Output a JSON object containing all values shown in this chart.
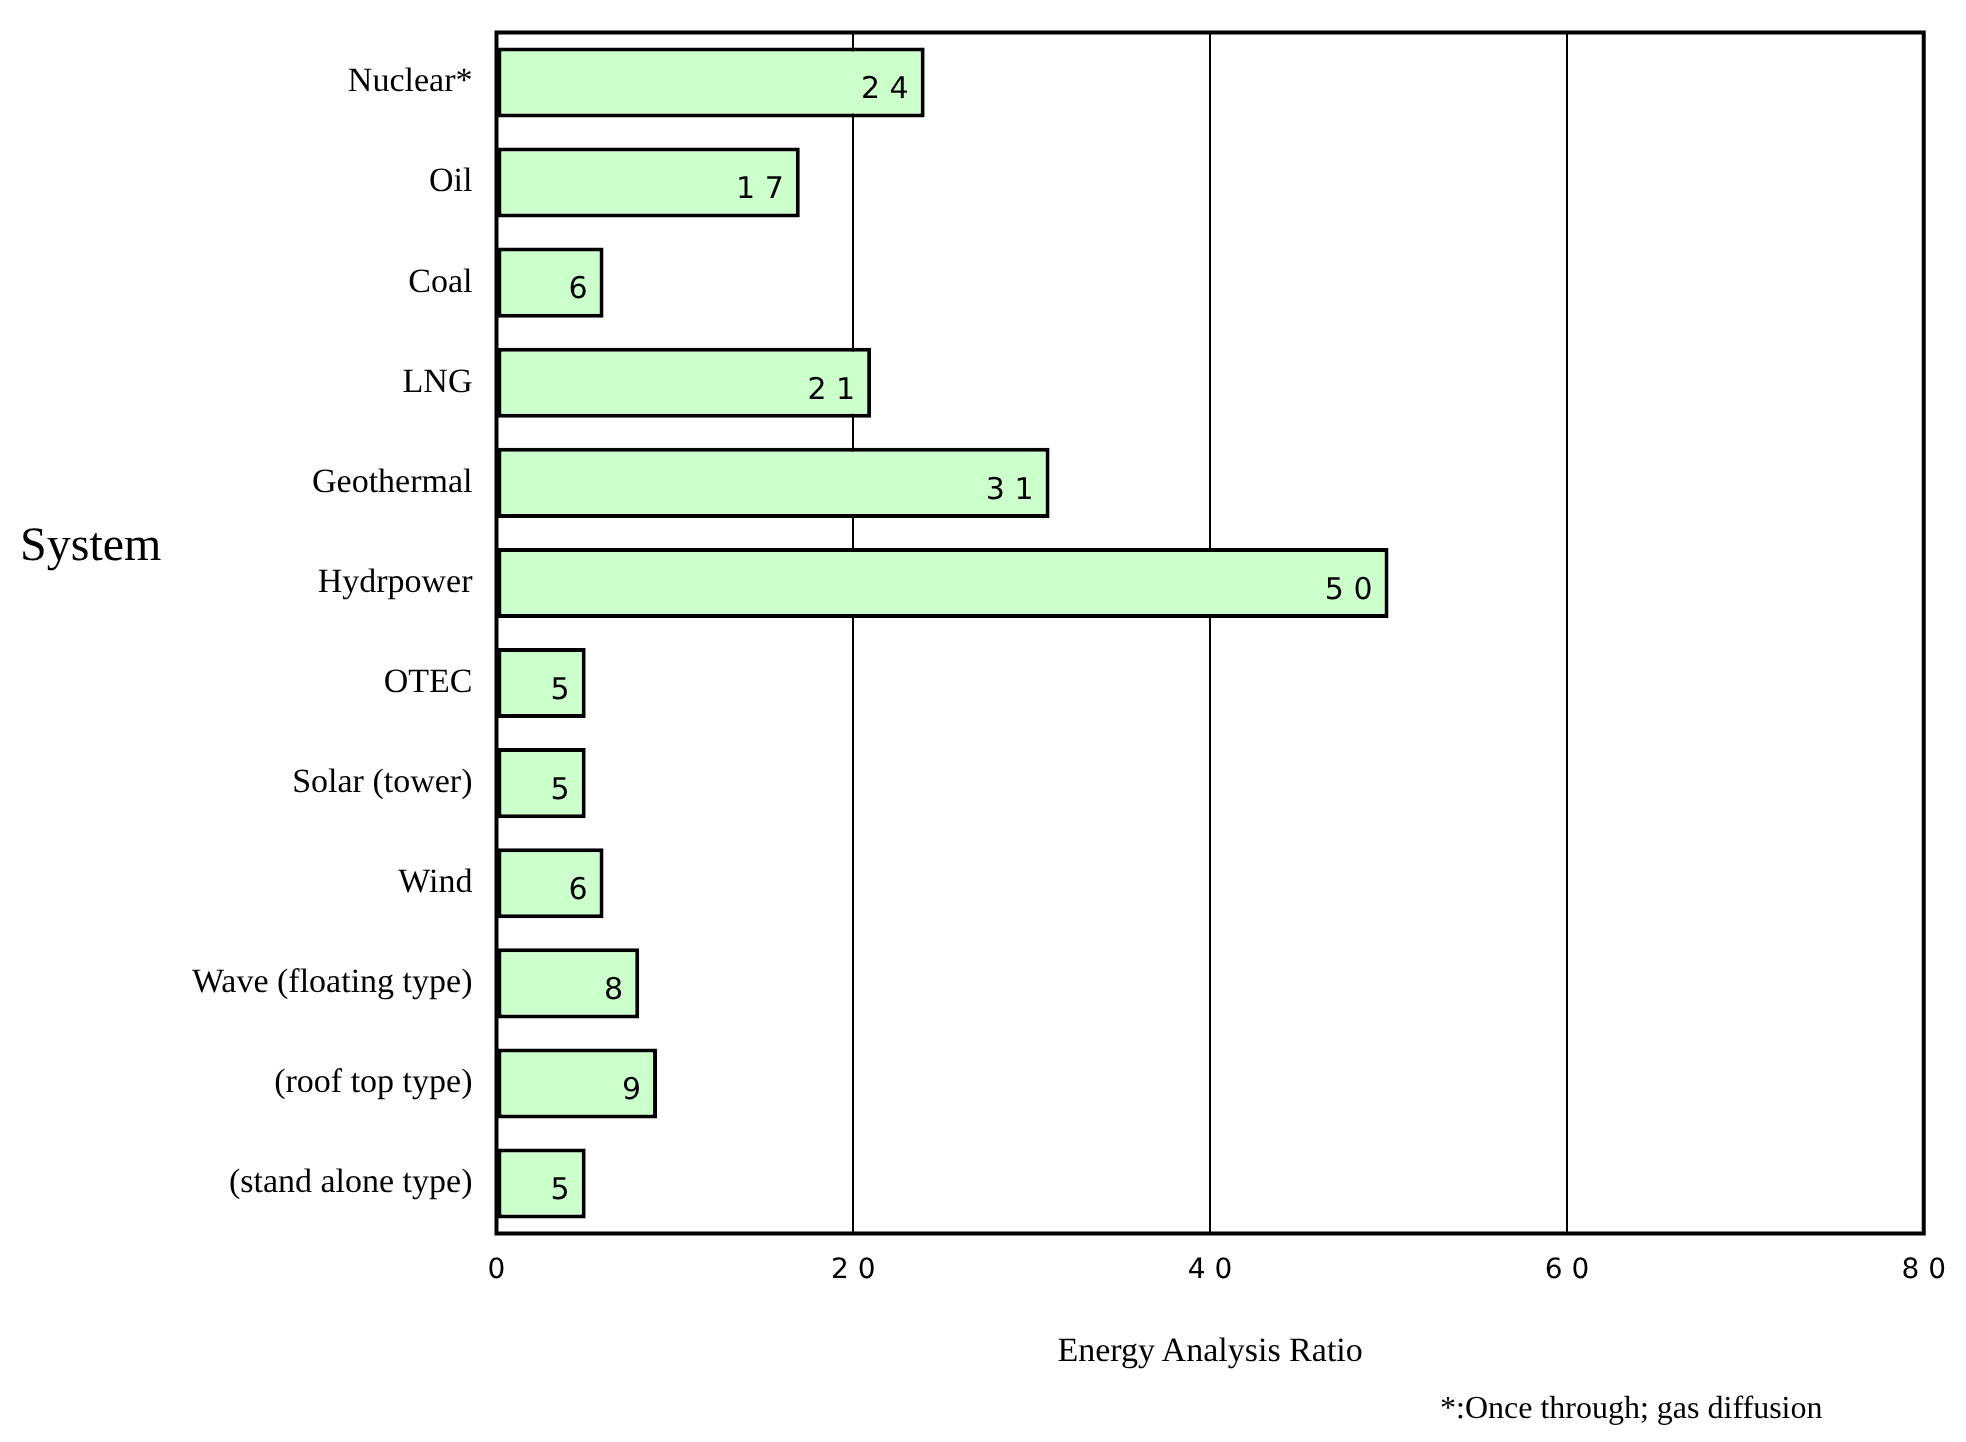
{
  "chart_data": {
    "type": "bar",
    "orientation": "horizontal",
    "categories": [
      "Nuclear*",
      "Oil",
      "Coal",
      "LNG",
      "Geothermal",
      "Hydrpower",
      "OTEC",
      "Solar (tower)",
      "Wind",
      "Wave (floating type)",
      "(roof top type)",
      "(stand alone type)"
    ],
    "values": [
      24,
      17,
      6,
      21,
      31,
      50,
      5,
      5,
      6,
      8,
      9,
      5
    ],
    "color": "#ccffcc",
    "xlim": [
      0,
      80
    ],
    "xticks": [
      0,
      20,
      40,
      60,
      80
    ],
    "grid": "x",
    "data_labels": true,
    "legend": false,
    "xlabel": "Energy Analysis Ratio",
    "ylabel": "System",
    "annotations": [
      "*:Once through; gas diffusion"
    ]
  }
}
